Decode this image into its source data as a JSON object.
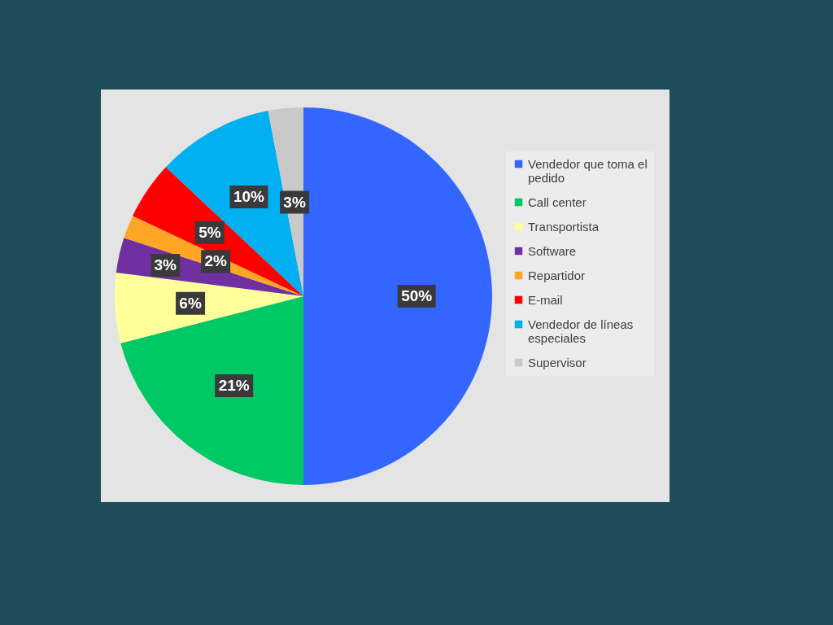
{
  "chart_data": {
    "type": "pie",
    "categories": [
      "Vendedor que toma el pedido",
      "Call center",
      "Transportista",
      "Software",
      "Repartidor",
      "E-mail",
      "Vendedor de líneas especiales",
      "Supervisor"
    ],
    "values": [
      50,
      21,
      6,
      3,
      2,
      5,
      10,
      3
    ],
    "colors": [
      "#3366ff",
      "#00c864",
      "#ffff99",
      "#7030a0",
      "#ffa626",
      "#ff0000",
      "#00b0f0",
      "#c9c9c9"
    ],
    "value_labels": [
      "50%",
      "21%",
      "6%",
      "3%",
      "2%",
      "5%",
      "10%",
      "3%"
    ],
    "legend": "right"
  }
}
